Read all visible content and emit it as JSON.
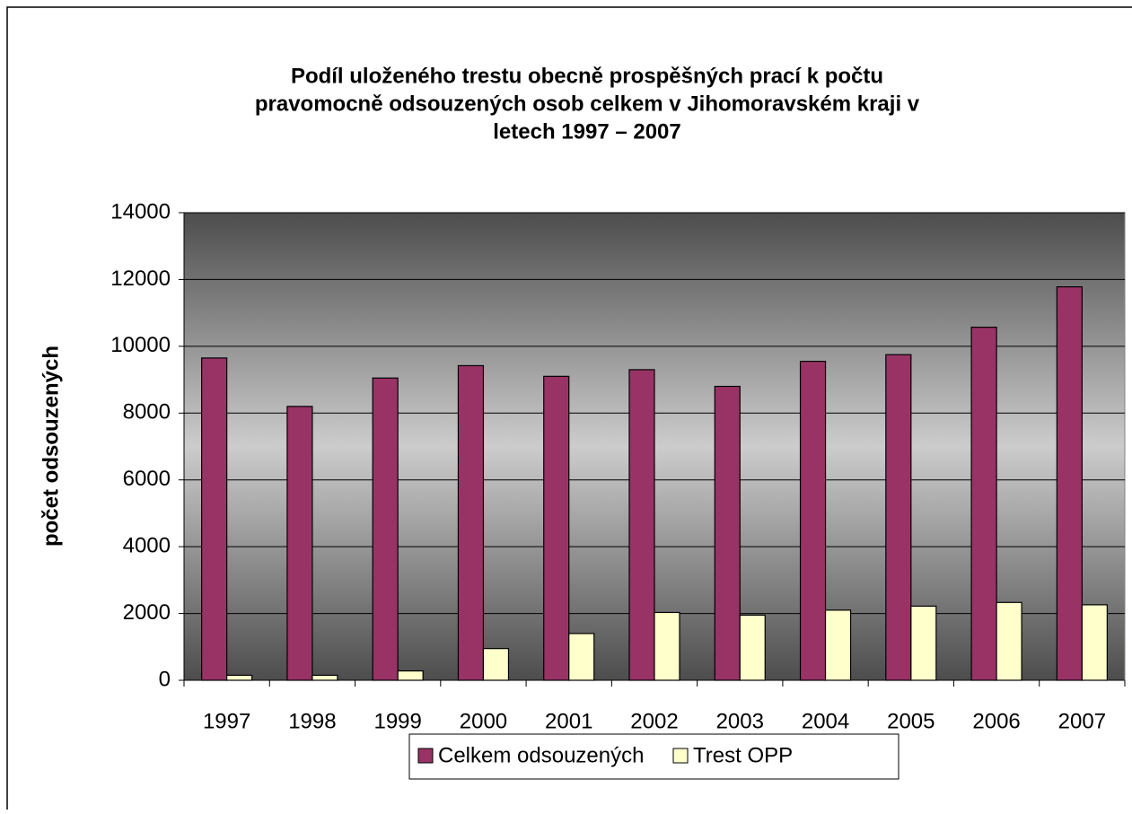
{
  "chart_data": {
    "type": "bar",
    "title_lines": [
      "Podíl uloženého trestu obecně prospěšných prací k  počtu",
      "pravomocně odsouzených osob celkem v Jihomoravském kraji v",
      "letech 1997 – 2007"
    ],
    "y_label": "počet odsouzených",
    "categories": [
      "1997",
      "1998",
      "1999",
      "2000",
      "2001",
      "2002",
      "2003",
      "2004",
      "2005",
      "2006",
      "2007"
    ],
    "series": [
      {
        "name": "Celkem odsouzených",
        "color": "#993366",
        "values": [
          9650,
          8200,
          9050,
          9420,
          9100,
          9300,
          8800,
          9550,
          9750,
          10570,
          11780
        ]
      },
      {
        "name": "Trest OPP",
        "color": "#ffffcc",
        "values": [
          150,
          150,
          280,
          950,
          1400,
          2030,
          1950,
          2100,
          2220,
          2330,
          2260
        ]
      }
    ],
    "ylim": [
      0,
      14000
    ],
    "yticks": [
      0,
      2000,
      4000,
      6000,
      8000,
      10000,
      12000,
      14000
    ],
    "grid": true,
    "legend": "bottom"
  }
}
